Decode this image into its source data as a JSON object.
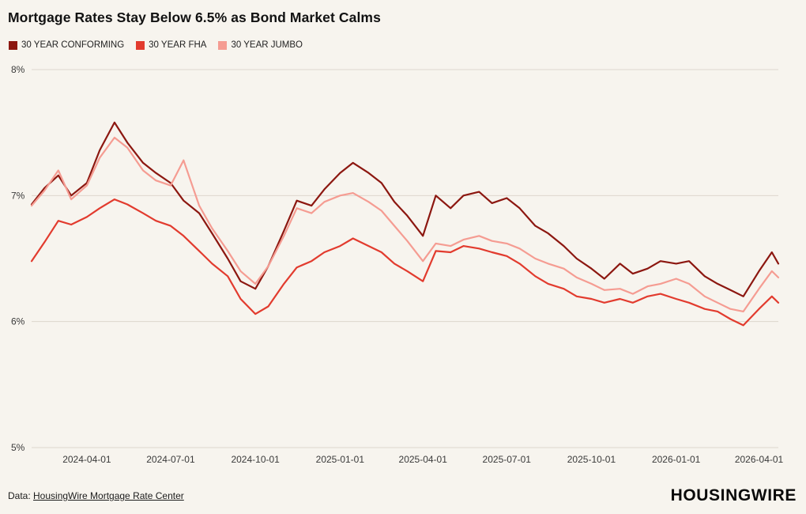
{
  "header": {
    "title": "Mortgage Rates Stay Below 6.5% as Bond Market Calms"
  },
  "legend": {
    "items": [
      {
        "id": "conforming",
        "label": "30 YEAR CONFORMING",
        "color": "#8c1710"
      },
      {
        "id": "fha",
        "label": "30 YEAR FHA",
        "color": "#e23b2e"
      },
      {
        "id": "jumbo",
        "label": "30 YEAR JUMBO",
        "color": "#f59c92"
      }
    ]
  },
  "footer": {
    "source_prefix": "Data: ",
    "source_link": "HousingWire Mortgage Rate Center",
    "logo": "HOUSINGWIRE"
  },
  "colors": {
    "background": "#f7f4ee",
    "grid": "#dcd6cd",
    "axis_text": "#3a3a3a"
  },
  "chart_data": {
    "type": "line",
    "title": "Mortgage Rates Stay Below 6.5% as Bond Market Calms",
    "xlabel": "",
    "ylabel": "",
    "ylim": [
      5,
      8
    ],
    "grid": "horizontal",
    "legend_position": "top",
    "y_ticks": [
      {
        "value": 5,
        "label": "5%"
      },
      {
        "value": 6,
        "label": "6%"
      },
      {
        "value": 7,
        "label": "7%"
      },
      {
        "value": 8,
        "label": "8%"
      }
    ],
    "x_ticks": [
      "2024-04-01",
      "2024-07-01",
      "2024-10-01",
      "2025-01-01",
      "2025-04-01",
      "2025-07-01",
      "2025-10-01",
      "2026-01-01",
      "2026-04-01"
    ],
    "x": [
      "2024-02-01",
      "2024-02-15",
      "2024-03-01",
      "2024-03-15",
      "2024-04-01",
      "2024-04-15",
      "2024-05-01",
      "2024-05-15",
      "2024-06-01",
      "2024-06-15",
      "2024-07-01",
      "2024-07-15",
      "2024-08-01",
      "2024-08-15",
      "2024-09-01",
      "2024-09-15",
      "2024-10-01",
      "2024-10-15",
      "2024-11-01",
      "2024-11-15",
      "2024-12-01",
      "2024-12-15",
      "2025-01-01",
      "2025-01-15",
      "2025-02-01",
      "2025-02-15",
      "2025-03-01",
      "2025-03-15",
      "2025-04-01",
      "2025-04-15",
      "2025-05-01",
      "2025-05-15",
      "2025-06-01",
      "2025-06-15",
      "2025-07-01",
      "2025-07-15",
      "2025-08-01",
      "2025-08-15",
      "2025-09-01",
      "2025-09-15",
      "2025-10-01",
      "2025-10-15",
      "2025-11-01",
      "2025-11-15",
      "2025-12-01",
      "2025-12-15",
      "2026-01-01",
      "2026-01-15",
      "2026-02-01",
      "2026-02-15",
      "2026-03-01",
      "2026-03-15",
      "2026-04-01",
      "2026-04-15",
      "2026-04-22"
    ],
    "series": [
      {
        "id": "conforming",
        "name": "30 YEAR CONFORMING",
        "color": "#8c1710",
        "values": [
          6.93,
          7.06,
          7.16,
          7.0,
          7.1,
          7.36,
          7.58,
          7.42,
          7.26,
          7.18,
          7.1,
          6.96,
          6.86,
          6.7,
          6.5,
          6.32,
          6.26,
          6.44,
          6.72,
          6.96,
          6.92,
          7.05,
          7.18,
          7.26,
          7.18,
          7.1,
          6.95,
          6.84,
          6.68,
          7.0,
          6.9,
          7.0,
          7.03,
          6.94,
          6.98,
          6.9,
          6.76,
          6.7,
          6.6,
          6.5,
          6.42,
          6.34,
          6.46,
          6.38,
          6.42,
          6.48,
          6.46,
          6.48,
          6.36,
          6.3,
          6.25,
          6.2,
          6.4,
          6.55,
          6.46
        ]
      },
      {
        "id": "fha",
        "name": "30 YEAR FHA",
        "color": "#e23b2e",
        "values": [
          6.48,
          6.63,
          6.8,
          6.77,
          6.83,
          6.9,
          6.97,
          6.93,
          6.86,
          6.8,
          6.76,
          6.68,
          6.56,
          6.46,
          6.36,
          6.18,
          6.06,
          6.12,
          6.3,
          6.43,
          6.48,
          6.55,
          6.6,
          6.66,
          6.6,
          6.55,
          6.46,
          6.4,
          6.32,
          6.56,
          6.55,
          6.6,
          6.58,
          6.55,
          6.52,
          6.46,
          6.36,
          6.3,
          6.26,
          6.2,
          6.18,
          6.15,
          6.18,
          6.15,
          6.2,
          6.22,
          6.18,
          6.15,
          6.1,
          6.08,
          6.02,
          5.97,
          6.1,
          6.2,
          6.15
        ]
      },
      {
        "id": "jumbo",
        "name": "30 YEAR JUMBO",
        "color": "#f59c92",
        "values": [
          6.92,
          7.04,
          7.2,
          6.97,
          7.08,
          7.3,
          7.46,
          7.38,
          7.2,
          7.12,
          7.08,
          7.28,
          6.92,
          6.74,
          6.56,
          6.4,
          6.3,
          6.44,
          6.68,
          6.9,
          6.86,
          6.95,
          7.0,
          7.02,
          6.95,
          6.88,
          6.76,
          6.64,
          6.48,
          6.62,
          6.6,
          6.65,
          6.68,
          6.64,
          6.62,
          6.58,
          6.5,
          6.46,
          6.42,
          6.35,
          6.3,
          6.25,
          6.26,
          6.22,
          6.28,
          6.3,
          6.34,
          6.3,
          6.2,
          6.15,
          6.1,
          6.08,
          6.26,
          6.4,
          6.35
        ]
      }
    ]
  }
}
